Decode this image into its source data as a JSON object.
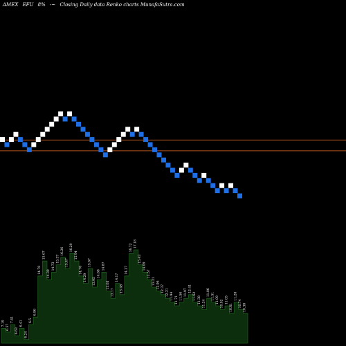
{
  "header": {
    "exchange": "AMEX",
    "symbol": "EFU",
    "percent": "8%",
    "arrows": "-~",
    "description": "Closing Daily data  Renko  charts MunafaSutra.com"
  },
  "colors": {
    "background": "#000000",
    "up_brick": "#ffffff",
    "down_brick": "#1e6fe6",
    "reference_line": "#b8561f",
    "volume_fill": "#0c2e0c",
    "volume_edge": "#1c5c1c"
  },
  "chart_data": {
    "type": "renko",
    "bricks": [
      {
        "level": 15,
        "dir": "up"
      },
      {
        "level": 14,
        "dir": "down"
      },
      {
        "level": 15,
        "dir": "up"
      },
      {
        "level": 16,
        "dir": "up"
      },
      {
        "level": 15,
        "dir": "down"
      },
      {
        "level": 14,
        "dir": "down"
      },
      {
        "level": 13,
        "dir": "down"
      },
      {
        "level": 14,
        "dir": "up"
      },
      {
        "level": 15,
        "dir": "up"
      },
      {
        "level": 16,
        "dir": "up"
      },
      {
        "level": 17,
        "dir": "up"
      },
      {
        "level": 18,
        "dir": "up"
      },
      {
        "level": 19,
        "dir": "up"
      },
      {
        "level": 20,
        "dir": "up"
      },
      {
        "level": 19,
        "dir": "down"
      },
      {
        "level": 20,
        "dir": "up"
      },
      {
        "level": 19,
        "dir": "down"
      },
      {
        "level": 18,
        "dir": "down"
      },
      {
        "level": 17,
        "dir": "down"
      },
      {
        "level": 16,
        "dir": "down"
      },
      {
        "level": 15,
        "dir": "down"
      },
      {
        "level": 14,
        "dir": "down"
      },
      {
        "level": 13,
        "dir": "down"
      },
      {
        "level": 12,
        "dir": "down"
      },
      {
        "level": 13,
        "dir": "up"
      },
      {
        "level": 14,
        "dir": "up"
      },
      {
        "level": 15,
        "dir": "up"
      },
      {
        "level": 16,
        "dir": "up"
      },
      {
        "level": 17,
        "dir": "up"
      },
      {
        "level": 16,
        "dir": "down"
      },
      {
        "level": 17,
        "dir": "up"
      },
      {
        "level": 16,
        "dir": "down"
      },
      {
        "level": 15,
        "dir": "down"
      },
      {
        "level": 14,
        "dir": "down"
      },
      {
        "level": 13,
        "dir": "down"
      },
      {
        "level": 12,
        "dir": "down"
      },
      {
        "level": 11,
        "dir": "down"
      },
      {
        "level": 10,
        "dir": "down"
      },
      {
        "level": 9,
        "dir": "down"
      },
      {
        "level": 8,
        "dir": "down"
      },
      {
        "level": 9,
        "dir": "up"
      },
      {
        "level": 10,
        "dir": "up"
      },
      {
        "level": 9,
        "dir": "down"
      },
      {
        "level": 8,
        "dir": "down"
      },
      {
        "level": 7,
        "dir": "down"
      },
      {
        "level": 8,
        "dir": "up"
      },
      {
        "level": 7,
        "dir": "down"
      },
      {
        "level": 6,
        "dir": "down"
      },
      {
        "level": 5,
        "dir": "down"
      },
      {
        "level": 6,
        "dir": "up"
      },
      {
        "level": 5,
        "dir": "down"
      },
      {
        "level": 6,
        "dir": "up"
      },
      {
        "level": 5,
        "dir": "down"
      },
      {
        "level": 4,
        "dir": "down"
      }
    ],
    "reference_levels": [
      14.9,
      12.8
    ],
    "volume": [
      {
        "v": 4,
        "label": "7.19"
      },
      {
        "v": 3,
        "label": "6.57"
      },
      {
        "v": 5,
        "label": "7.41"
      },
      {
        "v": 2,
        "label": "6.63"
      },
      {
        "v": 4,
        "label": "6.41"
      },
      {
        "v": 1,
        "label": "6.24"
      },
      {
        "v": 5,
        "label": "6.5"
      },
      {
        "v": 7,
        "label": "6.86"
      },
      {
        "v": 18,
        "label": "14.78"
      },
      {
        "v": 22,
        "label": "15.67"
      },
      {
        "v": 17,
        "label": "14.39"
      },
      {
        "v": 19,
        "label": "14.73"
      },
      {
        "v": 21,
        "label": "15.37"
      },
      {
        "v": 23,
        "label": "16.26"
      },
      {
        "v": 20,
        "label": "15.47"
      },
      {
        "v": 24,
        "label": "16.29"
      },
      {
        "v": 22,
        "label": "15.94"
      },
      {
        "v": 18,
        "label": "14.76"
      },
      {
        "v": 16,
        "label": "14.29"
      },
      {
        "v": 20,
        "label": "15.67"
      },
      {
        "v": 15,
        "label": "13.95"
      },
      {
        "v": 17,
        "label": "14.68"
      },
      {
        "v": 19,
        "label": "14.87"
      },
      {
        "v": 14,
        "label": "13.63"
      },
      {
        "v": 12,
        "label": "13.17"
      },
      {
        "v": 16,
        "label": "14.17"
      },
      {
        "v": 13,
        "label": "13.48"
      },
      {
        "v": 18,
        "label": "14.27"
      },
      {
        "v": 24,
        "label": "16.72"
      },
      {
        "v": 25,
        "label": "17.18"
      },
      {
        "v": 21,
        "label": "15.43"
      },
      {
        "v": 19,
        "label": "14.09"
      },
      {
        "v": 17,
        "label": "13.57"
      },
      {
        "v": 15,
        "label": "13.21"
      },
      {
        "v": 14,
        "label": "12.96"
      },
      {
        "v": 13,
        "label": "12.37"
      },
      {
        "v": 12,
        "label": "12.21"
      },
      {
        "v": 11,
        "label": "11.94"
      },
      {
        "v": 10,
        "label": "11.71"
      },
      {
        "v": 11,
        "label": "11.56"
      },
      {
        "v": 12,
        "label": "11.97"
      },
      {
        "v": 13,
        "label": "12.41"
      },
      {
        "v": 11,
        "label": "11.62"
      },
      {
        "v": 10,
        "label": "11.38"
      },
      {
        "v": 9,
        "label": "11.24"
      },
      {
        "v": 12,
        "label": "11.86"
      },
      {
        "v": 11,
        "label": "11.51"
      },
      {
        "v": 10,
        "label": "11.09"
      },
      {
        "v": 9,
        "label": "10.92"
      },
      {
        "v": 10,
        "label": "11.05"
      },
      {
        "v": 8,
        "label": "10.61"
      },
      {
        "v": 11,
        "label": "11.28"
      },
      {
        "v": 9,
        "label": "10.74"
      },
      {
        "v": 8,
        "label": "10.38"
      }
    ]
  }
}
